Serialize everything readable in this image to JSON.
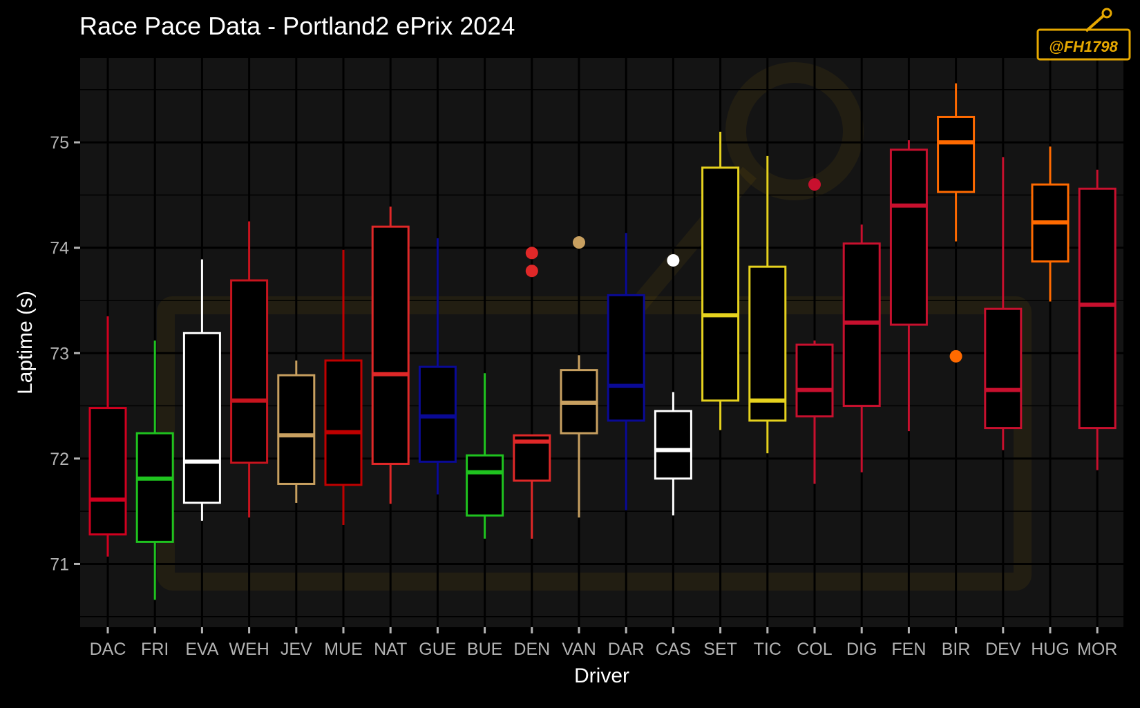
{
  "chart_data": {
    "type": "box",
    "title": "Race Pace Data - Portland2 ePrix 2024",
    "xlabel": "Driver",
    "ylabel": "Laptime (s)",
    "ylim": [
      70.4,
      75.8
    ],
    "yticks": [
      71,
      72,
      73,
      74,
      75
    ],
    "grid": true,
    "legend": "none",
    "watermark": "@FH1798",
    "categories": [
      "DAC",
      "FRI",
      "EVA",
      "WEH",
      "JEV",
      "MUE",
      "NAT",
      "GUE",
      "BUE",
      "DEN",
      "VAN",
      "DAR",
      "CAS",
      "SET",
      "TIC",
      "COL",
      "DIG",
      "FEN",
      "BIR",
      "DEV",
      "HUG",
      "MOR"
    ],
    "boxes": [
      {
        "driver": "DAC",
        "color": "#d1001f",
        "min": 71.07,
        "q1": 71.28,
        "median": 71.61,
        "q3": 72.48,
        "max": 73.35,
        "outliers": []
      },
      {
        "driver": "FRI",
        "color": "#1fc31f",
        "min": 70.66,
        "q1": 71.21,
        "median": 71.81,
        "q3": 72.24,
        "max": 73.12,
        "outliers": []
      },
      {
        "driver": "EVA",
        "color": "#ffffff",
        "min": 71.41,
        "q1": 71.58,
        "median": 71.97,
        "q3": 73.19,
        "max": 73.89,
        "outliers": []
      },
      {
        "driver": "WEH",
        "color": "#c8141e",
        "min": 71.44,
        "q1": 71.96,
        "median": 72.55,
        "q3": 73.69,
        "max": 74.25,
        "outliers": []
      },
      {
        "driver": "JEV",
        "color": "#c8a060",
        "min": 71.58,
        "q1": 71.76,
        "median": 72.22,
        "q3": 72.79,
        "max": 72.93,
        "outliers": []
      },
      {
        "driver": "MUE",
        "color": "#c00000",
        "min": 71.37,
        "q1": 71.75,
        "median": 72.25,
        "q3": 72.93,
        "max": 73.98,
        "outliers": []
      },
      {
        "driver": "NAT",
        "color": "#e02828",
        "min": 71.57,
        "q1": 71.95,
        "median": 72.8,
        "q3": 74.2,
        "max": 74.39,
        "outliers": []
      },
      {
        "driver": "GUE",
        "color": "#0a0a96",
        "min": 71.66,
        "q1": 71.97,
        "median": 72.4,
        "q3": 72.87,
        "max": 74.09,
        "outliers": []
      },
      {
        "driver": "BUE",
        "color": "#1fc31f",
        "min": 71.24,
        "q1": 71.46,
        "median": 71.87,
        "q3": 72.03,
        "max": 72.81,
        "outliers": []
      },
      {
        "driver": "DEN",
        "color": "#e02828",
        "min": 71.24,
        "q1": 71.79,
        "median": 72.16,
        "q3": 72.22,
        "max": 72.22,
        "outliers": [
          73.95,
          73.78
        ]
      },
      {
        "driver": "VAN",
        "color": "#c8a060",
        "min": 71.44,
        "q1": 72.24,
        "median": 72.53,
        "q3": 72.84,
        "max": 72.98,
        "outliers": [
          74.05
        ]
      },
      {
        "driver": "DAR",
        "color": "#0a0a96",
        "min": 71.51,
        "q1": 72.36,
        "median": 72.69,
        "q3": 73.55,
        "max": 74.14,
        "outliers": []
      },
      {
        "driver": "CAS",
        "color": "#ffffff",
        "min": 71.46,
        "q1": 71.81,
        "median": 72.08,
        "q3": 72.45,
        "max": 72.63,
        "outliers": [
          73.88
        ]
      },
      {
        "driver": "SET",
        "color": "#e6d21e",
        "min": 72.27,
        "q1": 72.55,
        "median": 73.36,
        "q3": 74.76,
        "max": 75.1,
        "outliers": []
      },
      {
        "driver": "TIC",
        "color": "#e6d21e",
        "min": 72.05,
        "q1": 72.36,
        "median": 72.55,
        "q3": 73.82,
        "max": 74.87,
        "outliers": []
      },
      {
        "driver": "COL",
        "color": "#c8102e",
        "min": 71.76,
        "q1": 72.4,
        "median": 72.65,
        "q3": 73.08,
        "max": 73.12,
        "outliers": [
          74.6
        ]
      },
      {
        "driver": "DIG",
        "color": "#c8102e",
        "min": 71.87,
        "q1": 72.5,
        "median": 73.29,
        "q3": 74.04,
        "max": 74.22,
        "outliers": []
      },
      {
        "driver": "FEN",
        "color": "#c8102e",
        "min": 72.26,
        "q1": 73.27,
        "median": 74.4,
        "q3": 74.93,
        "max": 75.02,
        "outliers": []
      },
      {
        "driver": "BIR",
        "color": "#ff6a00",
        "min": 74.06,
        "q1": 74.53,
        "median": 75.0,
        "q3": 75.24,
        "max": 75.56,
        "outliers": [
          72.97
        ]
      },
      {
        "driver": "DEV",
        "color": "#c8102e",
        "min": 72.08,
        "q1": 72.29,
        "median": 72.65,
        "q3": 73.42,
        "max": 74.86,
        "outliers": []
      },
      {
        "driver": "HUG",
        "color": "#ff6a00",
        "min": 73.49,
        "q1": 73.87,
        "median": 74.24,
        "q3": 74.6,
        "max": 74.96,
        "outliers": []
      },
      {
        "driver": "MOR",
        "color": "#c8102e",
        "min": 71.89,
        "q1": 72.29,
        "median": 73.46,
        "q3": 74.56,
        "max": 74.74,
        "outliers": []
      }
    ]
  },
  "colors": {
    "background": "#000000",
    "panel": "#141414",
    "grid": "#000000",
    "watermark": "#e6a800"
  }
}
